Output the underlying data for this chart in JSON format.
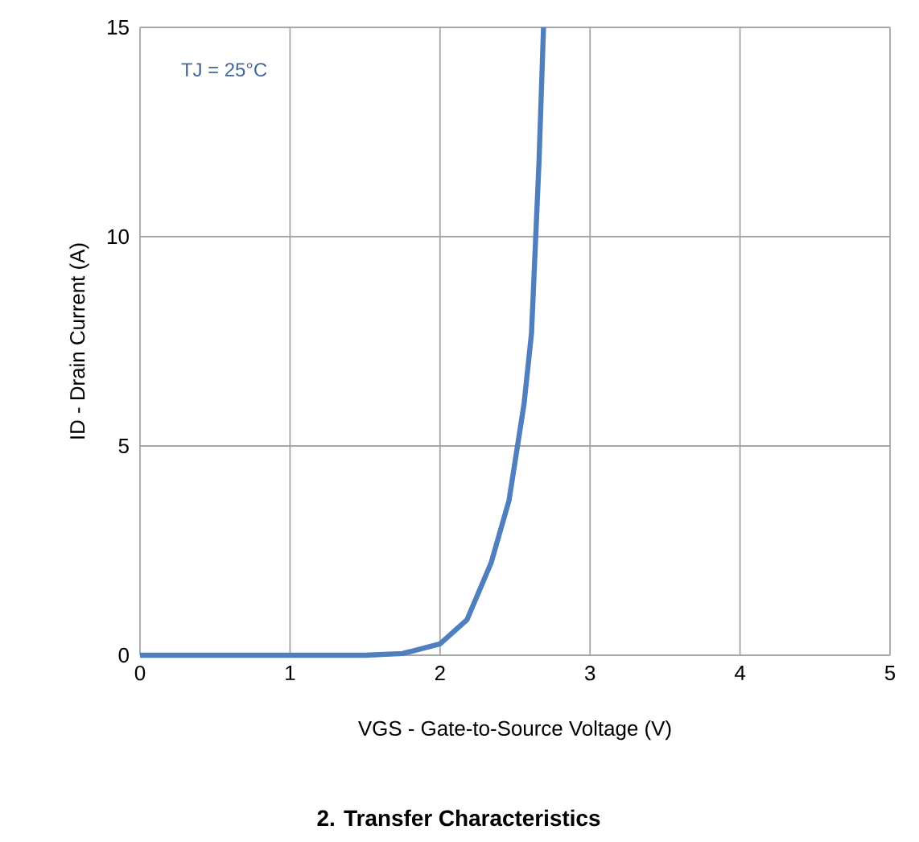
{
  "chart_data": {
    "type": "line",
    "title": "2. Transfer Characteristics",
    "xlabel": "VGS - Gate-to-Source Voltage (V)",
    "ylabel": "ID - Drain Current (A)",
    "annotations": [
      "TJ = 25°C"
    ],
    "xlim": [
      0,
      5
    ],
    "xticks": [
      0,
      1,
      2,
      3,
      4,
      5
    ],
    "ylim": [
      0,
      15
    ],
    "yticks": [
      0,
      5,
      10,
      15
    ],
    "grid": true,
    "series": [
      {
        "color": "#4f7fbf",
        "x": [
          0,
          0.5,
          1,
          1.5,
          1.75,
          2,
          2.18,
          2.34,
          2.46,
          2.56,
          2.61,
          2.66,
          2.69
        ],
        "values": [
          0,
          0,
          0,
          0,
          0.04,
          0.27,
          0.85,
          2.2,
          3.7,
          6.0,
          7.7,
          11.8,
          15
        ]
      }
    ]
  }
}
